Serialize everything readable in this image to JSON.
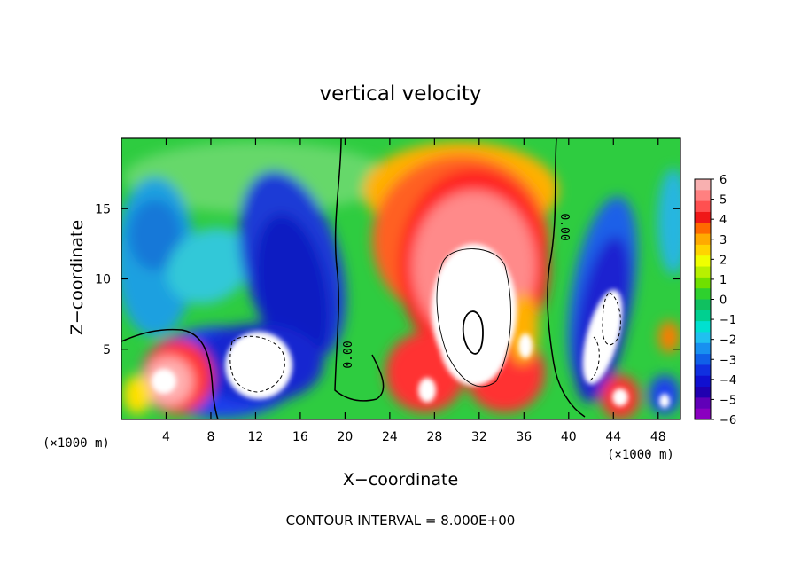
{
  "chart_data": {
    "type": "heatmap",
    "title": "vertical velocity",
    "xlabel": "X−coordinate",
    "ylabel": "Z−coordinate",
    "x_unit_label": "(×1000 m)",
    "z_unit_label": "(×1000 m)",
    "xlim": [
      0,
      50
    ],
    "zlim": [
      0,
      20
    ],
    "x_ticks": [
      "4",
      "8",
      "12",
      "16",
      "20",
      "24",
      "28",
      "32",
      "36",
      "40",
      "44",
      "48"
    ],
    "z_ticks": [
      "5",
      "10",
      "15"
    ],
    "colorbar": {
      "ticks": [
        "6",
        "5",
        "4",
        "3",
        "2",
        "1",
        "0",
        "−1",
        "−2",
        "−3",
        "−4",
        "−5",
        "−6"
      ],
      "range": [
        -6,
        6
      ]
    },
    "contour_labels": [
      "0.00",
      "0.00"
    ],
    "footer": "CONTOUR INTERVAL = 8.000E+00"
  }
}
